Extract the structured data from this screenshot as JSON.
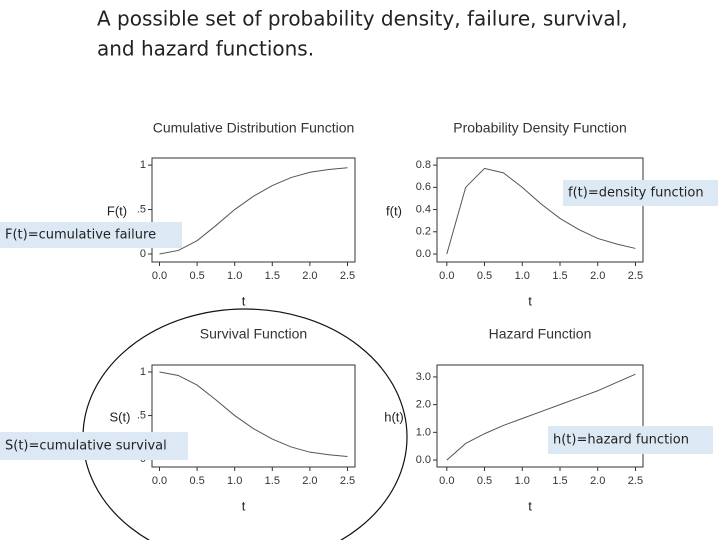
{
  "slide": {
    "title": [
      "A possible set of probability density, failure, survival,",
      "and hazard functions."
    ]
  },
  "chart_data": [
    {
      "type": "line",
      "title": "Cumulative Distribution Function",
      "xlabel": "t",
      "ylabel": "F(t)",
      "x": [
        0,
        0.25,
        0.5,
        0.75,
        1.0,
        1.25,
        1.5,
        1.75,
        2.0,
        2.25,
        2.5
      ],
      "values": [
        0,
        0.04,
        0.15,
        0.32,
        0.5,
        0.65,
        0.77,
        0.86,
        0.92,
        0.95,
        0.97
      ],
      "color": "#555555",
      "xlim": [
        -0.1,
        2.6
      ],
      "ylim": [
        -0.09,
        1.08
      ],
      "xticks": [
        {
          "value": 0,
          "label": "0.0"
        },
        {
          "value": 0.5,
          "label": "0.5"
        },
        {
          "value": 1,
          "label": "1.0"
        },
        {
          "value": 1.5,
          "label": "1.5"
        },
        {
          "value": 2,
          "label": "2.0"
        },
        {
          "value": 2.5,
          "label": "2.5"
        }
      ],
      "yticks": [
        0,
        {
          "value": 0.5,
          "label": ".5"
        },
        1
      ],
      "annotation": "F(t)=cumulative failure"
    },
    {
      "type": "line",
      "title": "Probability Density Function",
      "xlabel": "t",
      "ylabel": "f(t)",
      "x": [
        0,
        0.25,
        0.5,
        0.75,
        1.0,
        1.25,
        1.5,
        1.75,
        2.0,
        2.25,
        2.5
      ],
      "values": [
        0,
        0.6,
        0.77,
        0.73,
        0.6,
        0.45,
        0.32,
        0.22,
        0.14,
        0.09,
        0.05
      ],
      "color": "#555555",
      "xlim": [
        -0.13,
        2.6
      ],
      "ylim": [
        -0.072,
        0.864
      ],
      "xticks": [
        {
          "value": 0,
          "label": "0.0"
        },
        {
          "value": 0.5,
          "label": "0.5"
        },
        {
          "value": 1,
          "label": "1.0"
        },
        {
          "value": 1.5,
          "label": "1.5"
        },
        {
          "value": 2,
          "label": "2.0"
        },
        {
          "value": 2.5,
          "label": "2.5"
        }
      ],
      "yticks": [
        {
          "value": 0,
          "label": "0.0"
        },
        {
          "value": 0.2,
          "label": "0.2"
        },
        {
          "value": 0.4,
          "label": "0.4"
        },
        {
          "value": 0.6,
          "label": "0.6"
        },
        {
          "value": 0.8,
          "label": "0.8"
        }
      ],
      "annotation": "f(t)=density function"
    },
    {
      "type": "line",
      "title": "Survival Function",
      "xlabel": "t",
      "ylabel": "S(t)",
      "x": [
        0,
        0.25,
        0.5,
        0.75,
        1.0,
        1.25,
        1.5,
        1.75,
        2.0,
        2.25,
        2.5
      ],
      "values": [
        1,
        0.96,
        0.85,
        0.68,
        0.5,
        0.35,
        0.23,
        0.14,
        0.08,
        0.05,
        0.03
      ],
      "color": "#555555",
      "xlim": [
        -0.1,
        2.6
      ],
      "ylim": [
        -0.09,
        1.08
      ],
      "xticks": [
        {
          "value": 0,
          "label": "0.0"
        },
        {
          "value": 0.5,
          "label": "0.5"
        },
        {
          "value": 1,
          "label": "1.0"
        },
        {
          "value": 1.5,
          "label": "1.5"
        },
        {
          "value": 2,
          "label": "2.0"
        },
        {
          "value": 2.5,
          "label": "2.5"
        }
      ],
      "yticks": [
        0,
        {
          "value": 0.5,
          "label": ".5"
        },
        1
      ],
      "annotation": "S(t)=cumulative survival"
    },
    {
      "type": "line",
      "title": "Hazard Function",
      "xlabel": "t",
      "ylabel": "h(t)",
      "x": [
        0,
        0.25,
        0.5,
        0.75,
        1.0,
        1.25,
        1.5,
        1.75,
        2.0,
        2.25,
        2.5
      ],
      "values": [
        0,
        0.6,
        0.95,
        1.25,
        1.5,
        1.75,
        2.0,
        2.25,
        2.5,
        2.8,
        3.1
      ],
      "color": "#555555",
      "xlim": [
        -0.13,
        2.6
      ],
      "ylim": [
        -0.25,
        3.43
      ],
      "xticks": [
        {
          "value": 0,
          "label": "0.0"
        },
        {
          "value": 0.5,
          "label": "0.5"
        },
        {
          "value": 1,
          "label": "1.0"
        },
        {
          "value": 1.5,
          "label": "1.5"
        },
        {
          "value": 2,
          "label": "2.0"
        },
        {
          "value": 2.5,
          "label": "2.5"
        }
      ],
      "yticks": [
        {
          "value": 0,
          "label": "0.0"
        },
        {
          "value": 1,
          "label": "1.0"
        },
        {
          "value": 2,
          "label": "2.0"
        },
        {
          "value": 3,
          "label": "3.0"
        }
      ],
      "annotation": "h(t)=hazard function"
    }
  ]
}
